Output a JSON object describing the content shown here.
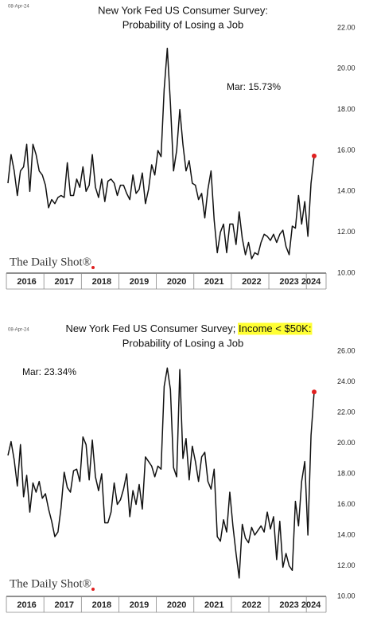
{
  "chart_data": [
    {
      "type": "line",
      "date": "08-Apr-24",
      "title": "New York Fed US Consumer Survey:",
      "title_line2": "Probability of Losing a Job",
      "annotation": "Mar:   15.73%",
      "logo": "The Daily Shot®",
      "categories": [
        null,
        null,
        null,
        null,
        null,
        null,
        "2016",
        null,
        null,
        null,
        null,
        null,
        null,
        null,
        null,
        null,
        null,
        null,
        "2017",
        null,
        null,
        null,
        null,
        null,
        null,
        null,
        null,
        null,
        null,
        null,
        "2018",
        null,
        null,
        null,
        null,
        null,
        null,
        null,
        null,
        null,
        null,
        null,
        "2019",
        null,
        null,
        null,
        null,
        null,
        null,
        null,
        null,
        null,
        null,
        null,
        "2020",
        null,
        null,
        null,
        null,
        null,
        null,
        null,
        null,
        null,
        null,
        null,
        "2021",
        null,
        null,
        null,
        null,
        null,
        null,
        null,
        null,
        null,
        null,
        null,
        "2022",
        null,
        null,
        null,
        null,
        null,
        null,
        null,
        null,
        null,
        null,
        null,
        "2023",
        null,
        null,
        null,
        null,
        null,
        null,
        "2024",
        null
      ],
      "series": [
        {
          "name": "Probability of Losing a Job",
          "color": "#111111",
          "values": [
            14.4,
            15.8,
            15.0,
            13.8,
            15.0,
            15.2,
            16.3,
            14.0,
            16.3,
            15.8,
            15.0,
            14.8,
            14.3,
            13.2,
            13.6,
            13.4,
            13.7,
            13.8,
            13.7,
            15.4,
            13.8,
            13.8,
            14.6,
            14.2,
            15.2,
            14.0,
            14.3,
            15.8,
            14.2,
            13.7,
            14.6,
            13.5,
            14.5,
            14.6,
            14.4,
            13.8,
            14.3,
            14.3,
            13.9,
            13.6,
            14.8,
            13.9,
            14.1,
            14.9,
            13.4,
            14.1,
            15.3,
            14.8,
            16.0,
            15.7,
            19.0,
            21.0,
            18.3,
            15.0,
            16.0,
            18.0,
            16.3,
            15.0,
            15.5,
            14.4,
            14.3,
            13.6,
            13.9,
            12.7,
            14.1,
            15.0,
            12.6,
            11.0,
            12.0,
            12.4,
            11.0,
            12.4,
            12.4,
            11.4,
            13.0,
            11.7,
            10.9,
            11.5,
            10.7,
            11.0,
            10.9,
            11.5,
            11.9,
            11.8,
            11.6,
            11.9,
            11.5,
            11.9,
            12.1,
            11.3,
            10.9,
            12.3,
            12.2,
            13.8,
            12.4,
            13.5,
            11.8,
            14.4,
            15.73
          ]
        }
      ],
      "highlight_color": "#e02020",
      "ylim": [
        10,
        22
      ],
      "yticks": [
        {
          "value": 10,
          "label": "10.00"
        },
        {
          "value": 12,
          "label": "12.00"
        },
        {
          "value": 14,
          "label": "14.00"
        },
        {
          "value": 16,
          "label": "16.00"
        },
        {
          "value": 18,
          "label": "18.00"
        },
        {
          "value": 20,
          "label": "20.00"
        },
        {
          "value": 22,
          "label": "22.00"
        }
      ]
    },
    {
      "type": "line",
      "date": "08-Apr-24",
      "title": "New York Fed US Consumer Survey; ",
      "title_highlight": "Income < $50K:",
      "title_line2": "Probability of Losing a Job",
      "annotation": "Mar:   23.34%",
      "logo": "The Daily Shot®",
      "categories": [
        null,
        null,
        null,
        null,
        null,
        null,
        "2016",
        null,
        null,
        null,
        null,
        null,
        null,
        null,
        null,
        null,
        null,
        null,
        "2017",
        null,
        null,
        null,
        null,
        null,
        null,
        null,
        null,
        null,
        null,
        null,
        "2018",
        null,
        null,
        null,
        null,
        null,
        null,
        null,
        null,
        null,
        null,
        null,
        "2019",
        null,
        null,
        null,
        null,
        null,
        null,
        null,
        null,
        null,
        null,
        null,
        "2020",
        null,
        null,
        null,
        null,
        null,
        null,
        null,
        null,
        null,
        null,
        null,
        "2021",
        null,
        null,
        null,
        null,
        null,
        null,
        null,
        null,
        null,
        null,
        null,
        "2022",
        null,
        null,
        null,
        null,
        null,
        null,
        null,
        null,
        null,
        null,
        null,
        "2023",
        null,
        null,
        null,
        null,
        null,
        null,
        "2024",
        null
      ],
      "series": [
        {
          "name": "Probability of Losing a Job",
          "color": "#111111",
          "values": [
            19.2,
            20.1,
            18.9,
            17.2,
            19.9,
            16.5,
            17.9,
            15.5,
            17.4,
            16.8,
            17.5,
            16.4,
            16.7,
            15.7,
            14.9,
            13.9,
            14.2,
            15.8,
            18.1,
            17.1,
            16.8,
            18.2,
            18.3,
            17.5,
            20.4,
            19.9,
            17.6,
            20.2,
            17.8,
            16.9,
            18.0,
            14.8,
            14.8,
            15.5,
            17.4,
            16.0,
            16.3,
            17.0,
            18.0,
            15.2,
            16.9,
            16.0,
            17.3,
            15.7,
            19.1,
            18.8,
            18.5,
            17.8,
            18.5,
            18.3,
            23.7,
            24.9,
            23.5,
            18.4,
            17.8,
            24.8,
            19.0,
            20.3,
            17.6,
            19.8,
            18.8,
            17.5,
            19.1,
            19.4,
            17.5,
            17.0,
            18.3,
            13.9,
            13.6,
            15.0,
            14.2,
            16.8,
            14.6,
            12.8,
            11.2,
            14.7,
            13.8,
            13.5,
            14.5,
            14.0,
            14.3,
            14.6,
            14.2,
            15.5,
            14.4,
            15.2,
            12.4,
            14.9,
            11.9,
            12.8,
            12.0,
            11.7,
            16.2,
            14.6,
            17.5,
            18.8,
            14.0,
            20.5,
            23.34
          ]
        }
      ],
      "highlight_color": "#e02020",
      "title_highlight_color": "#ffff33",
      "ylim": [
        10,
        26
      ],
      "yticks": [
        {
          "value": 10,
          "label": "10.00"
        },
        {
          "value": 12,
          "label": "12.00"
        },
        {
          "value": 14,
          "label": "14.00"
        },
        {
          "value": 16,
          "label": "16.00"
        },
        {
          "value": 18,
          "label": "18.00"
        },
        {
          "value": 20,
          "label": "20.00"
        },
        {
          "value": 22,
          "label": "22.00"
        },
        {
          "value": 24,
          "label": "24.00"
        },
        {
          "value": 26,
          "label": "26.00"
        }
      ]
    }
  ]
}
